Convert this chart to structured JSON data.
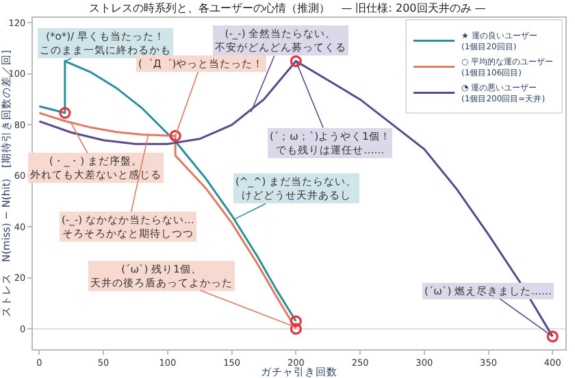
{
  "chart_data": {
    "type": "line",
    "title": "ストレスの時系列と、各ユーザーの心情（推測）　— 旧仕様: 200回天井のみ —",
    "xlabel": "ガチャ引き回数",
    "ylabel": "ストレス　N(miss) − N(hit)　[期待引き回数の差／回]",
    "xlim": [
      -5,
      410
    ],
    "ylim": [
      -8,
      122
    ],
    "xticks": [
      0,
      50,
      100,
      150,
      200,
      250,
      300,
      350,
      400
    ],
    "yticks": [
      0,
      20,
      40,
      60,
      80,
      100,
      120
    ],
    "grid": false,
    "legend": "top right",
    "marker": "none",
    "line_style": "solid",
    "ref_lines": [
      {
        "axis": "y",
        "value": 0,
        "color": "#dddddd"
      }
    ],
    "series": [
      {
        "name": "★ 運の良いユーザー\n(1個目20回目)",
        "color": "#2a8f9a",
        "x": [
          0,
          10,
          20,
          20,
          40,
          60,
          80,
          107,
          130,
          150,
          170,
          185,
          200
        ],
        "values": [
          87.3,
          86,
          84.7,
          105,
          100.7,
          94.5,
          86.6,
          73,
          58.8,
          44.5,
          28.4,
          15.2,
          3
        ]
      },
      {
        "name": "○ 平均的な運のユーザー\n(1個目106回目)",
        "color": "#e07a62",
        "x": [
          0,
          20,
          40,
          60,
          80,
          106,
          106,
          130,
          150,
          170,
          185,
          200
        ],
        "values": [
          84.7,
          81.5,
          79,
          77.2,
          76.2,
          75.7,
          68,
          55,
          41.5,
          25.5,
          12.5,
          0
        ]
      },
      {
        "name": "◔ 運の悪いユーザー\n(1個目200回目=天井)",
        "color": "#5b4a8b",
        "x": [
          0,
          25,
          50,
          75,
          100,
          125,
          150,
          175,
          200,
          250,
          300,
          325,
          350,
          375,
          400
        ],
        "values": [
          81.4,
          77,
          74,
          72.5,
          72.5,
          74.5,
          80,
          90,
          105,
          90,
          70.5,
          55,
          37,
          18,
          -3
        ]
      },
      {
        "type": "scatter",
        "marker": "circle",
        "color": "#e8333c",
        "x": [
          20,
          106,
          200,
          200,
          200,
          400
        ],
        "values": [
          84.7,
          75.7,
          105,
          3,
          0,
          -3
        ]
      }
    ],
    "annotations": [
      {
        "text": "(*o*)/ 早くも当たった！このまま一気に終わるかも",
        "x": 20,
        "y": 105
      },
      {
        "text": "(゜Д゜)やっと当たった！",
        "x": 106,
        "y": 75.7
      },
      {
        "text": "(-_-) 全然当たらない、不安がどんどん募ってくる",
        "x": 165,
        "y": 85
      },
      {
        "text": "(・_・) まだ序盤。外れても大差ないと感じる",
        "x": 25,
        "y": 80.5
      },
      {
        "text": "(-_-) なかなか当たらない…そろそろかなと期待しつつ",
        "x": 85,
        "y": 76.3
      },
      {
        "text": "(^_^) まだ当たらない、けどどうせ天井あるし",
        "x": 152,
        "y": 43
      },
      {
        "text": "(´ω`) 残り1個、天井の後ろ盾あってよかった",
        "x": 198,
        "y": 1
      },
      {
        "text": "(´；ω；`)ようやく1個！でも残りは運任せ……",
        "x": 200,
        "y": 105
      },
      {
        "text": "(´ω`) 燃え尽きました……",
        "x": 400,
        "y": -3
      }
    ]
  }
}
